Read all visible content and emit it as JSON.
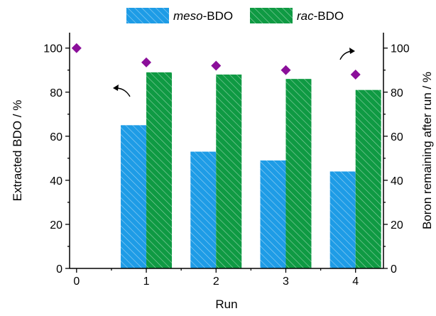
{
  "chart_data": {
    "type": "bar",
    "x": [
      0,
      1,
      2,
      3,
      4
    ],
    "categories": [
      "0",
      "1",
      "2",
      "3",
      "4"
    ],
    "series": [
      {
        "name_italic": "meso",
        "name_rest": "-BDO",
        "color": "#1e9ce6",
        "type": "bar",
        "axis": "left",
        "values": [
          null,
          65,
          53,
          49,
          44
        ]
      },
      {
        "name_italic": "rac",
        "name_rest": "-BDO",
        "color": "#0f9a43",
        "type": "bar",
        "axis": "left",
        "values": [
          null,
          89,
          88,
          86,
          81
        ]
      },
      {
        "type": "scatter",
        "marker": "diamond",
        "color": "#8b0f9a",
        "axis": "right",
        "values": [
          100,
          93.5,
          92,
          90,
          88
        ]
      }
    ],
    "xlabel": "Run",
    "ylabel_left": "Extracted BDO / %",
    "ylabel_right": "Boron remaining after run / %",
    "xlim": [
      -0.1,
      4.4
    ],
    "ylim_left": [
      0,
      107
    ],
    "ylim_right": [
      0,
      107
    ],
    "xticks": [
      "0",
      "1",
      "2",
      "3",
      "4"
    ],
    "yticks_left": [
      "0",
      "20",
      "40",
      "60",
      "80",
      "100"
    ],
    "yticks_right": [
      "0",
      "20",
      "40",
      "60",
      "80",
      "100"
    ],
    "grid": false,
    "legend": "top-center"
  }
}
